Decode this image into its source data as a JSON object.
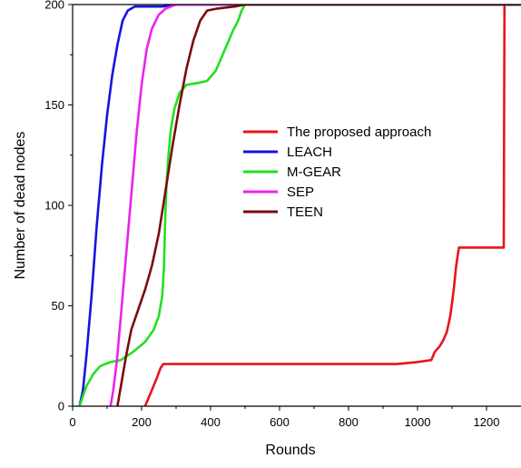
{
  "chart_data": {
    "type": "line",
    "title": "",
    "xlabel": "Rounds",
    "ylabel": "Number of dead nodes",
    "xlim": [
      0,
      1300
    ],
    "ylim": [
      0,
      200
    ],
    "xticks": [
      "0",
      "200",
      "400",
      "600",
      "800",
      "1000",
      "1200"
    ],
    "yticks": [
      "0",
      "50",
      "100",
      "150",
      "200"
    ],
    "grid": false,
    "legend_position": "center-right",
    "series": [
      {
        "name": "The proposed approach",
        "color": "#e8141b",
        "points": [
          [
            210,
            0
          ],
          [
            220,
            4
          ],
          [
            232,
            9
          ],
          [
            244,
            14
          ],
          [
            255,
            19
          ],
          [
            263,
            21
          ],
          [
            400,
            21
          ],
          [
            600,
            21
          ],
          [
            800,
            21
          ],
          [
            940,
            21
          ],
          [
            1000,
            22
          ],
          [
            1040,
            23
          ],
          [
            1050,
            27
          ],
          [
            1065,
            30
          ],
          [
            1075,
            33
          ],
          [
            1085,
            37
          ],
          [
            1095,
            45
          ],
          [
            1105,
            58
          ],
          [
            1112,
            70
          ],
          [
            1120,
            79
          ],
          [
            1250,
            79
          ],
          [
            1252,
            200
          ],
          [
            1300,
            200
          ]
        ]
      },
      {
        "name": "LEACH",
        "color": "#1414e0",
        "points": [
          [
            20,
            0
          ],
          [
            30,
            8
          ],
          [
            40,
            25
          ],
          [
            55,
            55
          ],
          [
            70,
            90
          ],
          [
            85,
            120
          ],
          [
            100,
            145
          ],
          [
            115,
            165
          ],
          [
            130,
            180
          ],
          [
            145,
            192
          ],
          [
            160,
            197
          ],
          [
            180,
            199
          ],
          [
            260,
            199
          ],
          [
            300,
            200
          ],
          [
            1300,
            200
          ]
        ]
      },
      {
        "name": "M-GEAR",
        "color": "#22e022",
        "points": [
          [
            20,
            0
          ],
          [
            40,
            10
          ],
          [
            60,
            16
          ],
          [
            80,
            20
          ],
          [
            110,
            22
          ],
          [
            140,
            23
          ],
          [
            175,
            27
          ],
          [
            210,
            32
          ],
          [
            235,
            38
          ],
          [
            250,
            45
          ],
          [
            260,
            55
          ],
          [
            265,
            70
          ],
          [
            268,
            90
          ],
          [
            272,
            110
          ],
          [
            278,
            125
          ],
          [
            285,
            138
          ],
          [
            295,
            148
          ],
          [
            310,
            156
          ],
          [
            330,
            160
          ],
          [
            365,
            161
          ],
          [
            390,
            162
          ],
          [
            415,
            167
          ],
          [
            440,
            177
          ],
          [
            465,
            187
          ],
          [
            480,
            192
          ],
          [
            490,
            197
          ],
          [
            500,
            200
          ],
          [
            1300,
            200
          ]
        ]
      },
      {
        "name": "SEP",
        "color": "#ee22ee",
        "points": [
          [
            110,
            0
          ],
          [
            118,
            8
          ],
          [
            128,
            22
          ],
          [
            140,
            45
          ],
          [
            155,
            75
          ],
          [
            170,
            105
          ],
          [
            185,
            135
          ],
          [
            200,
            160
          ],
          [
            215,
            178
          ],
          [
            230,
            188
          ],
          [
            250,
            195
          ],
          [
            270,
            198
          ],
          [
            300,
            200
          ],
          [
            1300,
            200
          ]
        ]
      },
      {
        "name": "TEEN",
        "color": "#7a0c0c",
        "points": [
          [
            130,
            0
          ],
          [
            140,
            10
          ],
          [
            155,
            25
          ],
          [
            170,
            38
          ],
          [
            190,
            48
          ],
          [
            210,
            58
          ],
          [
            230,
            70
          ],
          [
            250,
            86
          ],
          [
            270,
            108
          ],
          [
            290,
            130
          ],
          [
            310,
            150
          ],
          [
            330,
            168
          ],
          [
            350,
            182
          ],
          [
            370,
            192
          ],
          [
            390,
            197
          ],
          [
            420,
            198
          ],
          [
            470,
            199
          ],
          [
            500,
            200
          ],
          [
            1300,
            200
          ]
        ]
      }
    ]
  }
}
